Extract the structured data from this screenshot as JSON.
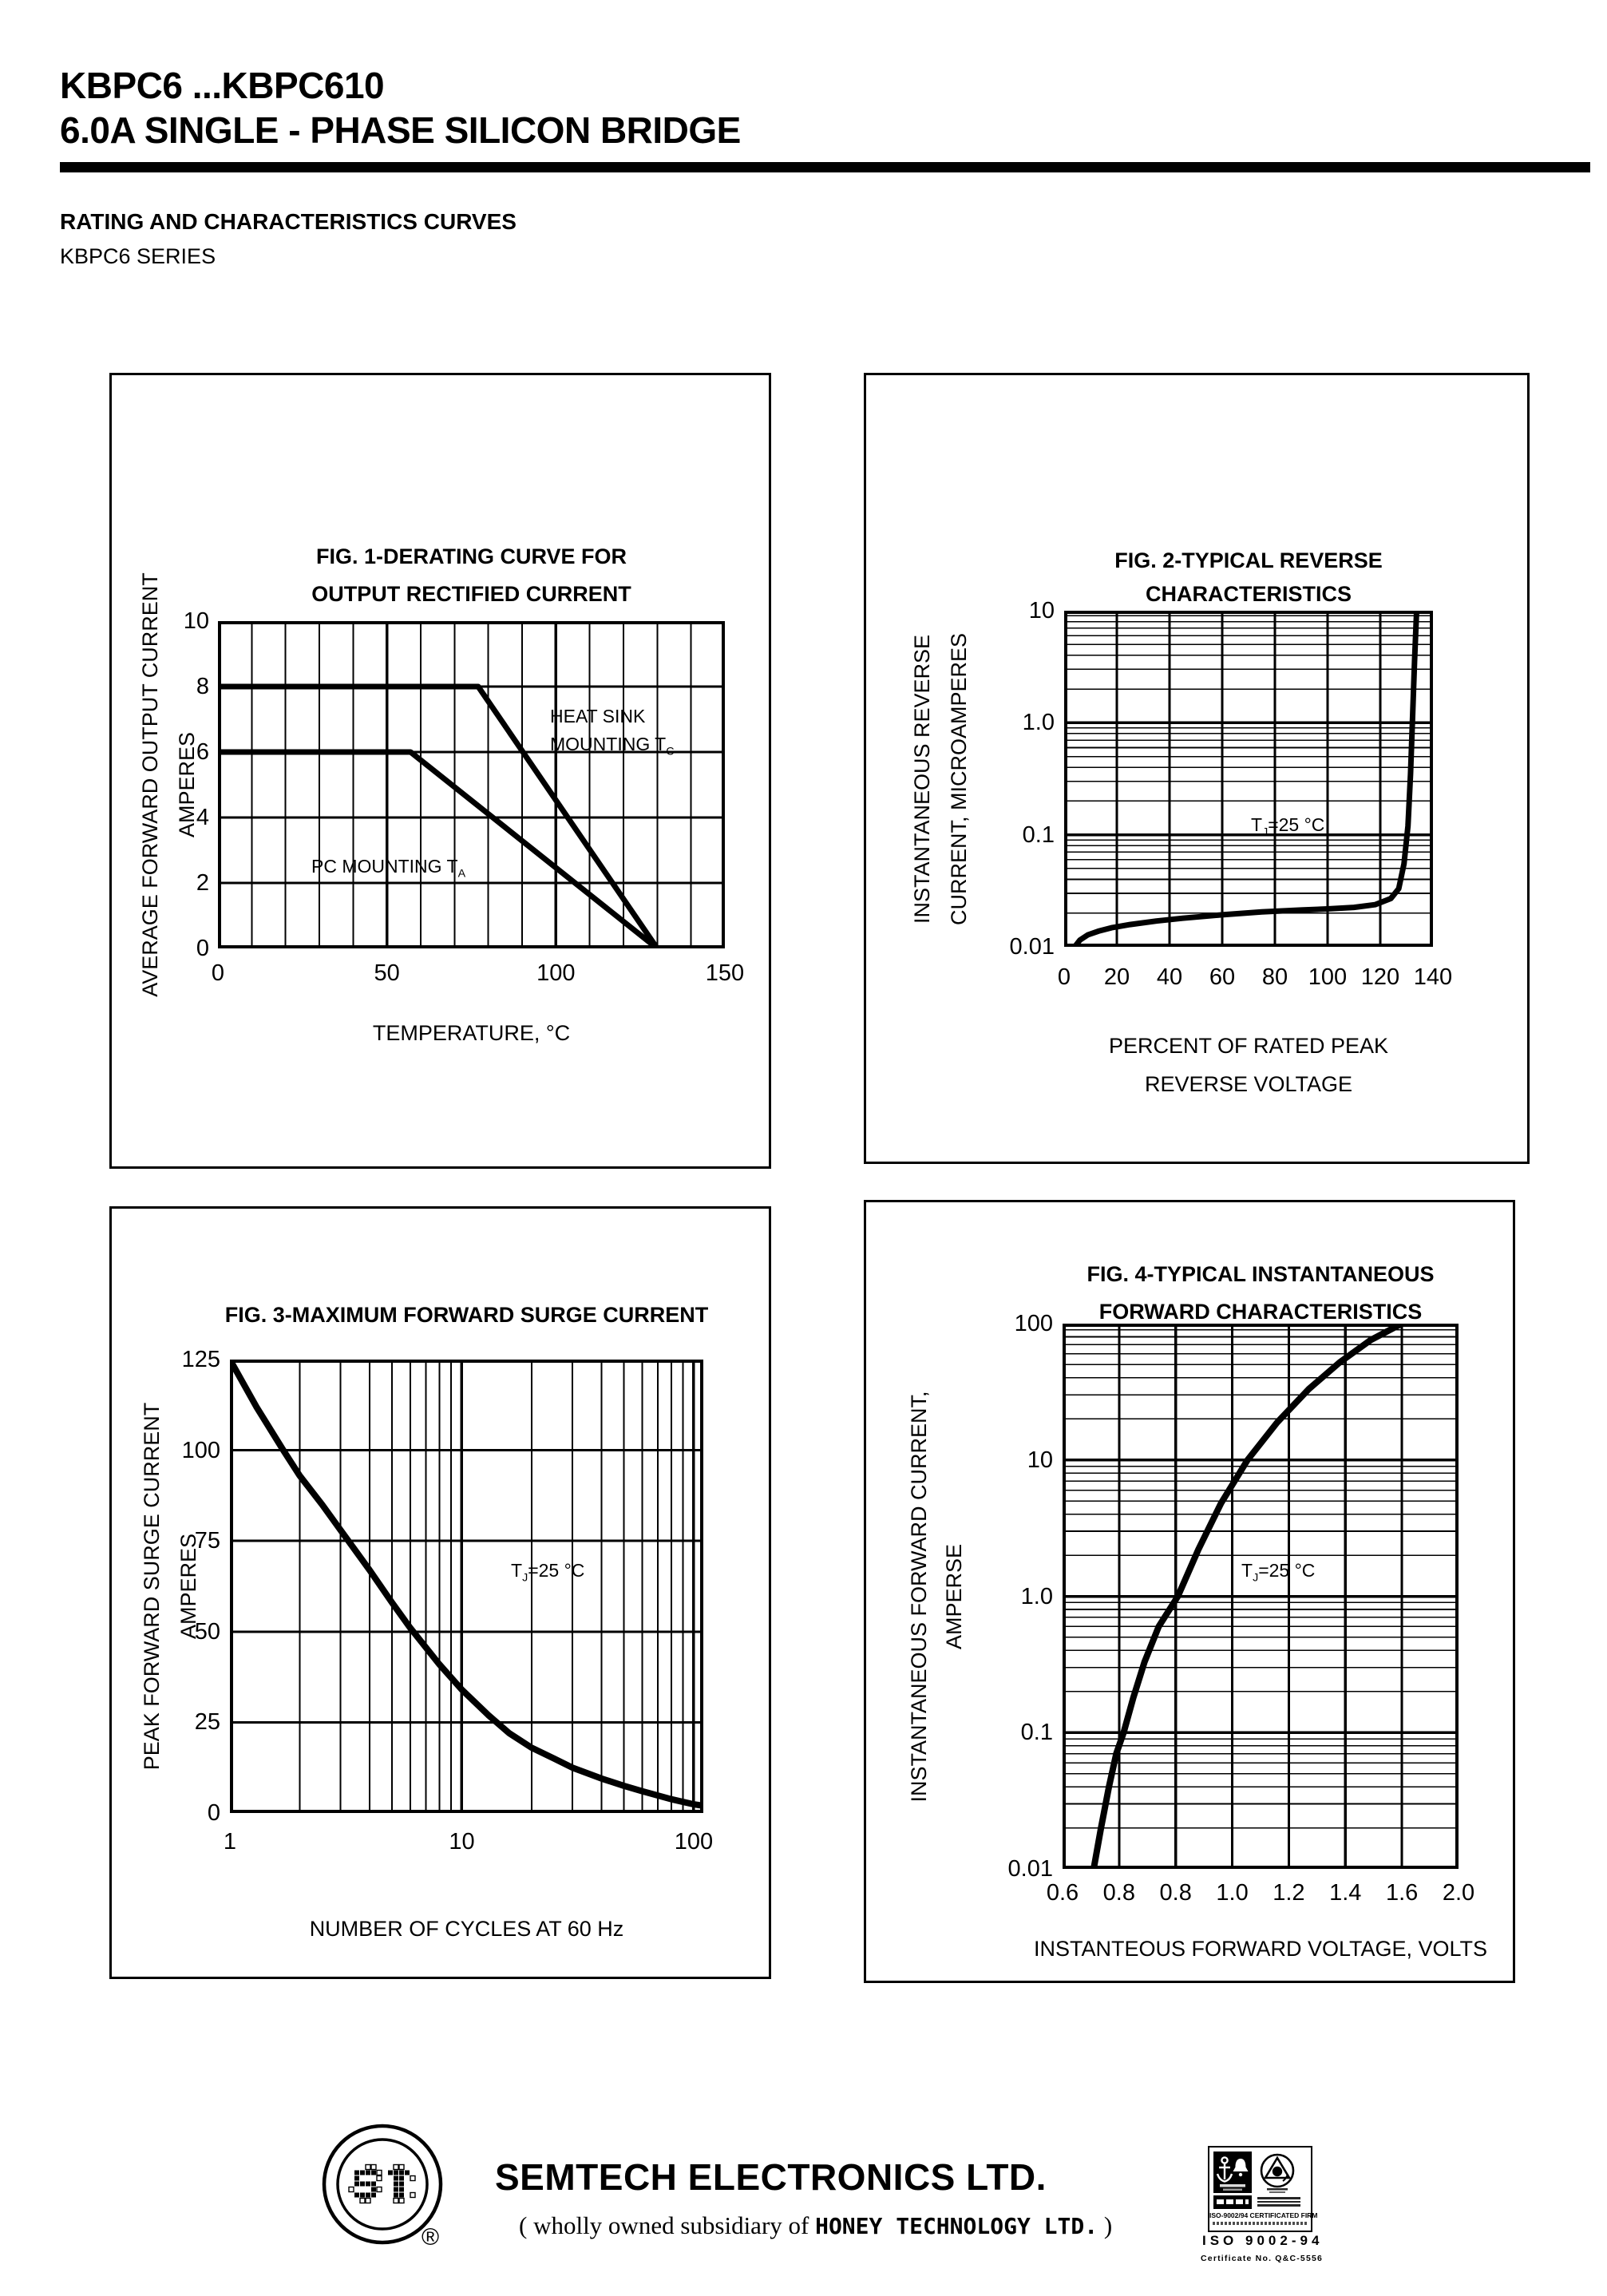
{
  "page": {
    "title_line1": "KBPC6 ...KBPC610",
    "title_line2": "6.0A SINGLE - PHASE SILICON BRIDGE",
    "section_heading": "RATING AND CHARACTERISTICS CURVES",
    "section_subheading": "KBPC6 SERIES"
  },
  "chart_data": [
    {
      "type": "line",
      "title1": "FIG. 1-DERATING CURVE FOR",
      "title2": "OUTPUT RECTIFIED CURRENT",
      "ylabel1": "AVERAGE FORWARD OUTPUT CURRENT",
      "ylabel2": "AMPERES",
      "xlabel": "TEMPERATURE, °C",
      "xscale": "linear",
      "yscale": "linear",
      "xlim": [
        0,
        150
      ],
      "ylim": [
        0,
        10
      ],
      "grid": true,
      "xgrid_minor": 10,
      "xticks": [
        {
          "v": 0,
          "label": "0"
        },
        {
          "v": 50,
          "label": "50"
        },
        {
          "v": 100,
          "label": "100"
        },
        {
          "v": 150,
          "label": "150"
        }
      ],
      "yticks": [
        {
          "v": 0,
          "label": "0"
        },
        {
          "v": 2,
          "label": "2"
        },
        {
          "v": 4,
          "label": "4"
        },
        {
          "v": 6,
          "label": "6"
        },
        {
          "v": 8,
          "label": "8"
        },
        {
          "v": 10,
          "label": "10"
        }
      ],
      "series": [
        {
          "name": "HEAT SINK MOUNTING TC",
          "points": [
            [
              0,
              8
            ],
            [
              77,
              8
            ],
            [
              130,
              0
            ]
          ]
        },
        {
          "name": "PC MOUNTING TA",
          "points": [
            [
              0,
              6
            ],
            [
              57,
              6
            ],
            [
              130,
              0
            ]
          ]
        }
      ],
      "curve_label_heatsink": {
        "line1": "HEAT SINK",
        "line2": "MOUNTING T",
        "sub": "C"
      },
      "curve_label_pc": {
        "text": "PC MOUNTING T",
        "sub": "A"
      }
    },
    {
      "type": "line",
      "title1": "FIG. 2-TYPICAL REVERSE",
      "title2": "CHARACTERISTICS",
      "ylabel1": "INSTANTANEOUS REVERSE",
      "ylabel2": "CURRENT, MICROAMPERES",
      "xlabel1": "PERCENT OF RATED PEAK",
      "xlabel2": "REVERSE VOLTAGE",
      "xscale": "linear",
      "yscale": "log",
      "xlim": [
        0,
        140
      ],
      "ylim": [
        0.01,
        10
      ],
      "grid": true,
      "xgrid_minor": 20,
      "xticks": [
        {
          "v": 0,
          "label": "0"
        },
        {
          "v": 20,
          "label": "20"
        },
        {
          "v": 40,
          "label": "40"
        },
        {
          "v": 60,
          "label": "60"
        },
        {
          "v": 80,
          "label": "80"
        },
        {
          "v": 100,
          "label": "100"
        },
        {
          "v": 120,
          "label": "120"
        },
        {
          "v": 140,
          "label": "140"
        }
      ],
      "yticks": [
        {
          "v": 10,
          "label": "10"
        },
        {
          "v": 1,
          "label": "1.0"
        },
        {
          "v": 0.1,
          "label": "0.1"
        },
        {
          "v": 0.01,
          "label": "0.01"
        }
      ],
      "annotation": {
        "pre": "T",
        "sub": "J",
        "post": "=25 °C"
      },
      "series": [
        {
          "name": "instantaneous reverse current at TJ=25C",
          "points": [
            [
              4,
              0.01
            ],
            [
              6,
              0.0115
            ],
            [
              9,
              0.0128
            ],
            [
              13,
              0.0138
            ],
            [
              18,
              0.0148
            ],
            [
              25,
              0.0158
            ],
            [
              35,
              0.017
            ],
            [
              45,
              0.018
            ],
            [
              60,
              0.0193
            ],
            [
              75,
              0.0205
            ],
            [
              90,
              0.0213
            ],
            [
              100,
              0.0218
            ],
            [
              110,
              0.0225
            ],
            [
              118,
              0.0238
            ],
            [
              124,
              0.027
            ],
            [
              127,
              0.033
            ],
            [
              129,
              0.055
            ],
            [
              130.5,
              0.12
            ],
            [
              131.5,
              0.35
            ],
            [
              132.3,
              1.2
            ],
            [
              133,
              3.5
            ],
            [
              133.8,
              10
            ]
          ]
        }
      ]
    },
    {
      "type": "line",
      "title1": "FIG. 3-MAXIMUM FORWARD SURGE CURRENT",
      "ylabel1": "PEAK FORWARD SURGE CURRENT",
      "ylabel2": "AMPERES",
      "xlabel": "NUMBER OF CYCLES AT 60 Hz",
      "xscale": "log",
      "yscale": "linear",
      "xlim": [
        1,
        110
      ],
      "ylim": [
        0,
        125
      ],
      "grid": true,
      "xticks": [
        {
          "v": 1,
          "label": "1"
        },
        {
          "v": 10,
          "label": "10"
        },
        {
          "v": 100,
          "label": "100"
        }
      ],
      "yticks": [
        {
          "v": 0,
          "label": "0"
        },
        {
          "v": 25,
          "label": "25"
        },
        {
          "v": 50,
          "label": "50"
        },
        {
          "v": 75,
          "label": "75"
        },
        {
          "v": 100,
          "label": "100"
        },
        {
          "v": 125,
          "label": "125"
        }
      ],
      "annotation": {
        "pre": "T",
        "sub": "J",
        "post": "=25 °C"
      },
      "series": [
        {
          "name": "peak forward surge current",
          "points": [
            [
              1,
              125
            ],
            [
              1.3,
              112
            ],
            [
              1.7,
              100
            ],
            [
              2,
              93
            ],
            [
              2.5,
              85
            ],
            [
              3,
              78
            ],
            [
              4,
              67
            ],
            [
              5,
              58
            ],
            [
              6,
              51
            ],
            [
              8,
              41
            ],
            [
              10,
              34
            ],
            [
              13,
              27
            ],
            [
              16,
              22
            ],
            [
              20,
              18
            ],
            [
              25,
              15
            ],
            [
              30,
              12.5
            ],
            [
              40,
              9.5
            ],
            [
              50,
              7.5
            ],
            [
              60,
              6
            ],
            [
              80,
              3.8
            ],
            [
              100,
              2.4
            ],
            [
              110,
              2
            ]
          ]
        }
      ]
    },
    {
      "type": "line",
      "title1": "FIG. 4-TYPICAL INSTANTANEOUS",
      "title2": "FORWARD CHARACTERISTICS",
      "ylabel1": "INSTANTANEOUS FORWARD CURRENT,",
      "ylabel2": "AMPERSE",
      "xlabel": "INSTANTEOUS FORWARD VOLTAGE, VOLTS",
      "xscale": "linear",
      "yscale": "log",
      "xlim": [
        0,
        7
      ],
      "ylim": [
        0.01,
        100
      ],
      "grid": true,
      "xgrid_minor": 1,
      "xticks": [
        {
          "v": 0,
          "label": "0.6"
        },
        {
          "v": 1,
          "label": "0.8"
        },
        {
          "v": 2,
          "label": "0.8"
        },
        {
          "v": 3,
          "label": "1.0"
        },
        {
          "v": 4,
          "label": "1.2"
        },
        {
          "v": 5,
          "label": "1.4"
        },
        {
          "v": 6,
          "label": "1.6"
        },
        {
          "v": 7,
          "label": "2.0"
        }
      ],
      "yticks": [
        {
          "v": 100,
          "label": "100"
        },
        {
          "v": 10,
          "label": "10"
        },
        {
          "v": 1,
          "label": "1.0"
        },
        {
          "v": 0.1,
          "label": "0.1"
        },
        {
          "v": 0.01,
          "label": "0.01"
        }
      ],
      "annotation": {
        "pre": "T",
        "sub": "J",
        "post": "=25 °C"
      },
      "series": [
        {
          "name": "instantaneous forward current at TJ=25C",
          "points": [
            [
              0.55,
              0.01
            ],
            [
              0.68,
              0.02
            ],
            [
              0.82,
              0.04
            ],
            [
              0.95,
              0.07
            ],
            [
              1.08,
              0.1
            ],
            [
              1.25,
              0.18
            ],
            [
              1.45,
              0.33
            ],
            [
              1.7,
              0.6
            ],
            [
              2.04,
              1.0
            ],
            [
              2.4,
              2.2
            ],
            [
              2.8,
              4.8
            ],
            [
              3.27,
              10
            ],
            [
              3.8,
              19
            ],
            [
              4.35,
              33
            ],
            [
              4.9,
              52
            ],
            [
              5.45,
              76
            ],
            [
              6.0,
              100
            ],
            [
              6.2,
              115
            ]
          ]
        }
      ]
    }
  ],
  "footer": {
    "logo_text": "ST",
    "registered_mark": "®",
    "company": "SEMTECH ELECTRONICS LTD.",
    "subsidiary_prefix": "(  wholly owned subsidiary of ",
    "subsidiary_name": "HONEY TECHNOLOGY LTD.",
    "subsidiary_suffix": " )",
    "cert_line1": "ISO-9002/94 CERTIFICATED FIRM",
    "cert_iso": "ISO 9002-94",
    "cert_no": "Certificate No. Q&C-5556"
  }
}
